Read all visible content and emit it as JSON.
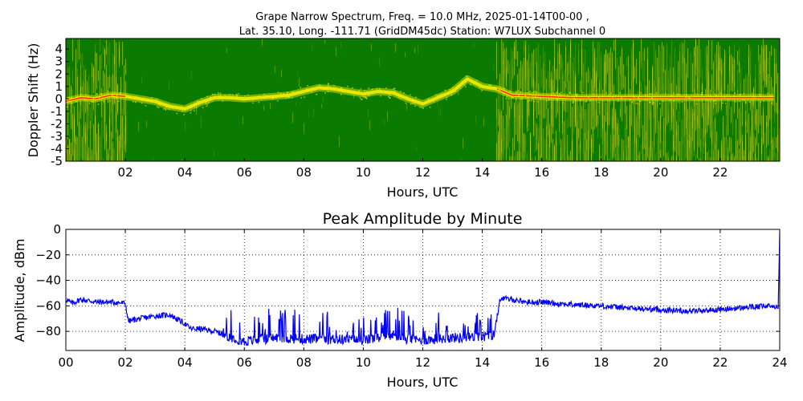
{
  "chart_data": [
    {
      "type": "heatmap",
      "title_line1": "Grape Narrow Spectrum, Freq. = 10.0 MHz, 2025-01-14T00-00 ,",
      "title_line2": "Lat.  35.10, Long. -111.71 (GridDM45dc) Station: W7LUX Subchannel 0",
      "xlabel": "Hours, UTC",
      "ylabel": "Doppler Shift (Hz)",
      "xlim": [
        0,
        24
      ],
      "ylim": [
        -5,
        5
      ],
      "x_ticks": [
        2,
        4,
        6,
        8,
        10,
        12,
        14,
        16,
        18,
        20,
        22
      ],
      "x_tick_labels": [
        "02",
        "04",
        "06",
        "08",
        "10",
        "12",
        "14",
        "16",
        "18",
        "20",
        "22"
      ],
      "y_ticks": [
        4,
        3,
        2,
        1,
        0,
        -1,
        -2,
        -3,
        -4,
        -5
      ],
      "y_tick_labels": [
        "4",
        "3",
        "2",
        "1",
        "0",
        "-1",
        "-2",
        "-3",
        "-4",
        "-5"
      ],
      "colors": {
        "background": "#0a7a00",
        "mid": "#c8e000",
        "high": "#ffee00",
        "peak": "#ff3000"
      },
      "doppler_trace": {
        "x": [
          0,
          0.5,
          1,
          1.5,
          2,
          2.5,
          3,
          3.5,
          4,
          4.5,
          5,
          5.5,
          6,
          6.5,
          7,
          7.5,
          8,
          8.5,
          9,
          9.5,
          10,
          10.5,
          11,
          11.5,
          12,
          12.5,
          13,
          13.5,
          14,
          14.5,
          15,
          16,
          17,
          18,
          19,
          20,
          21,
          22,
          23,
          23.8
        ],
        "y": [
          -0.2,
          0.1,
          0.0,
          0.3,
          0.2,
          0.0,
          -0.2,
          -0.6,
          -0.8,
          -0.3,
          0.1,
          0.1,
          0.0,
          0.1,
          0.2,
          0.3,
          0.6,
          0.9,
          0.8,
          0.6,
          0.4,
          0.6,
          0.5,
          0.0,
          -0.4,
          0.1,
          0.6,
          1.6,
          1.0,
          0.8,
          0.3,
          0.2,
          0.1,
          0.1,
          0.1,
          0.1,
          0.1,
          0.1,
          0.1,
          0.1
        ]
      }
    },
    {
      "type": "line",
      "title": "Peak Amplitude by Minute",
      "xlabel": "Hours, UTC",
      "ylabel": "Amplitude, dBm",
      "xlim": [
        0,
        24
      ],
      "ylim": [
        -95,
        0
      ],
      "grid": true,
      "x_ticks": [
        0,
        2,
        4,
        6,
        8,
        10,
        12,
        14,
        16,
        18,
        20,
        22,
        24
      ],
      "x_tick_labels": [
        "00",
        "02",
        "04",
        "06",
        "08",
        "10",
        "12",
        "14",
        "16",
        "18",
        "20",
        "22",
        "24"
      ],
      "y_ticks": [
        0,
        -20,
        -40,
        -60,
        -80
      ],
      "y_tick_labels": [
        "0",
        "−20",
        "−40",
        "−60",
        "−80"
      ],
      "line_color": "#0000ff",
      "x": [
        0,
        0.2,
        0.5,
        0.8,
        1.0,
        1.5,
        2.0,
        2.1,
        2.5,
        3.0,
        3.5,
        4.0,
        4.2,
        4.5,
        5.0,
        5.5,
        6.0,
        7.0,
        8.0,
        9.0,
        10.0,
        10.5,
        11.0,
        11.5,
        12.0,
        12.5,
        13.0,
        13.5,
        14.0,
        14.4,
        14.6,
        15.0,
        15.5,
        16.0,
        17.0,
        18.0,
        19.0,
        20.0,
        21.0,
        22.0,
        23.0,
        23.8,
        23.95,
        24.0
      ],
      "y": [
        -55,
        -58,
        -55,
        -56,
        -57,
        -57,
        -58,
        -72,
        -70,
        -68,
        -67,
        -74,
        -78,
        -78,
        -80,
        -84,
        -88,
        -85,
        -86,
        -86,
        -87,
        -85,
        -83,
        -86,
        -87,
        -86,
        -85,
        -85,
        -84,
        -83,
        -54,
        -55,
        -57,
        -57,
        -59,
        -60,
        -62,
        -63,
        -64,
        -63,
        -61,
        -60,
        -62,
        -2
      ]
    }
  ]
}
